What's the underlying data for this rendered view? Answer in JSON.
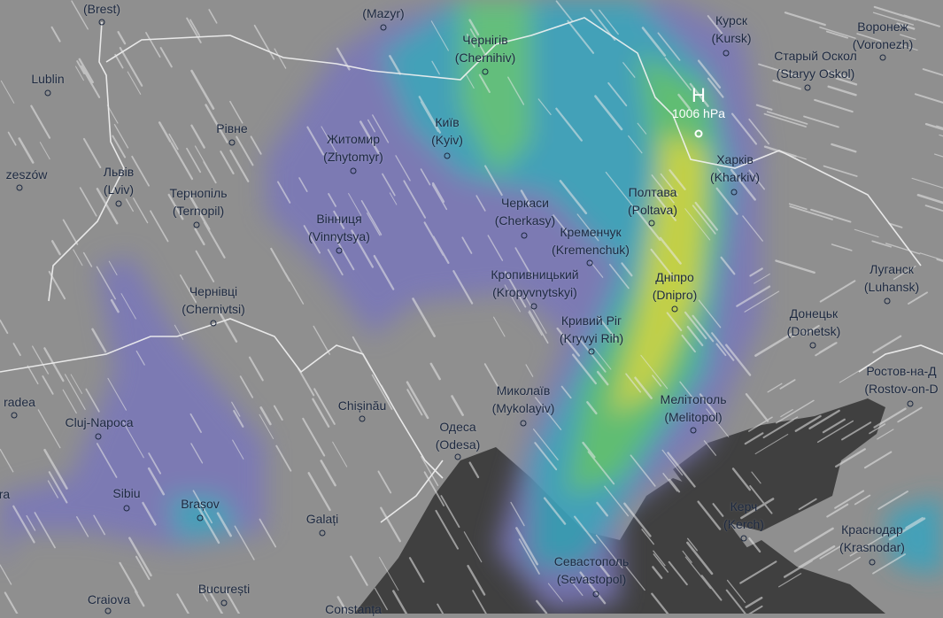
{
  "map": {
    "layer": "precipitation and wind",
    "colors": {
      "land": "#8f8f8f",
      "sea": "#404040",
      "border": "#f2f2f2",
      "label": "#1d2940",
      "light_precip": "#7b78b8",
      "moderate_precip": "#3fa6b8",
      "heavy_precip": "#c9d840"
    },
    "pressure_center": {
      "symbol": "H",
      "value": "1006 hPa"
    },
    "cities": [
      {
        "name": "",
        "alt": "(Brest)"
      },
      {
        "name": "",
        "alt": "(Mazyr)"
      },
      {
        "name": "Чернігів",
        "alt": "(Chernihiv)"
      },
      {
        "name": "Київ",
        "alt": "(Kyiv)"
      },
      {
        "name": "Житомир",
        "alt": "(Zhytomyr)"
      },
      {
        "name": "Lublin",
        "alt": ""
      },
      {
        "name": "Рівне",
        "alt": ""
      },
      {
        "name": "zeszów",
        "alt": ""
      },
      {
        "name": "Львів",
        "alt": "(Lviv)"
      },
      {
        "name": "Тернопіль",
        "alt": "(Ternopil)"
      },
      {
        "name": "Вінниця",
        "alt": "(Vinnytsya)"
      },
      {
        "name": "Чернівці",
        "alt": "(Chernivtsi)"
      },
      {
        "name": "Черкаси",
        "alt": "(Cherkasy)"
      },
      {
        "name": "Кременчук",
        "alt": "(Kremenchuk)"
      },
      {
        "name": "Кропивницький",
        "alt": "(Kropyvnytskyi)"
      },
      {
        "name": "Полтава",
        "alt": "(Poltava)"
      },
      {
        "name": "Дніпро",
        "alt": "(Dnipro)"
      },
      {
        "name": "Курск",
        "alt": "(Kursk)"
      },
      {
        "name": "Харків",
        "alt": "(Kharkiv)"
      },
      {
        "name": "Воронеж",
        "alt": "(Voronezh)"
      },
      {
        "name": "Старый Оскол",
        "alt": "(Staryy Oskol)"
      },
      {
        "name": "Луганск",
        "alt": "(Luhansk)"
      },
      {
        "name": "Донецьк",
        "alt": "(Donetsk)"
      },
      {
        "name": "Кривий Ріг",
        "alt": "(Kryvyi Rih)"
      },
      {
        "name": "Ростов-на-Д",
        "alt": "(Rostov-on-D"
      },
      {
        "name": "Мелітополь",
        "alt": "(Melitopol)"
      },
      {
        "name": "Миколаїв",
        "alt": "(Mykolayiv)"
      },
      {
        "name": "Одеса",
        "alt": "(Odesa)"
      },
      {
        "name": "Chișinău",
        "alt": ""
      },
      {
        "name": "radea",
        "alt": ""
      },
      {
        "name": "Cluj-Napoca",
        "alt": ""
      },
      {
        "name": "Sibiu",
        "alt": ""
      },
      {
        "name": "Brașov",
        "alt": ""
      },
      {
        "name": "ra",
        "alt": ""
      },
      {
        "name": "Galați",
        "alt": ""
      },
      {
        "name": "Керч",
        "alt": "(Kerch)"
      },
      {
        "name": "Краснодар",
        "alt": "(Krasnodar)"
      },
      {
        "name": "Севастополь",
        "alt": "(Sevastopol)"
      },
      {
        "name": "Craiova",
        "alt": ""
      },
      {
        "name": "București",
        "alt": ""
      },
      {
        "name": "Constanța",
        "alt": ""
      }
    ]
  }
}
